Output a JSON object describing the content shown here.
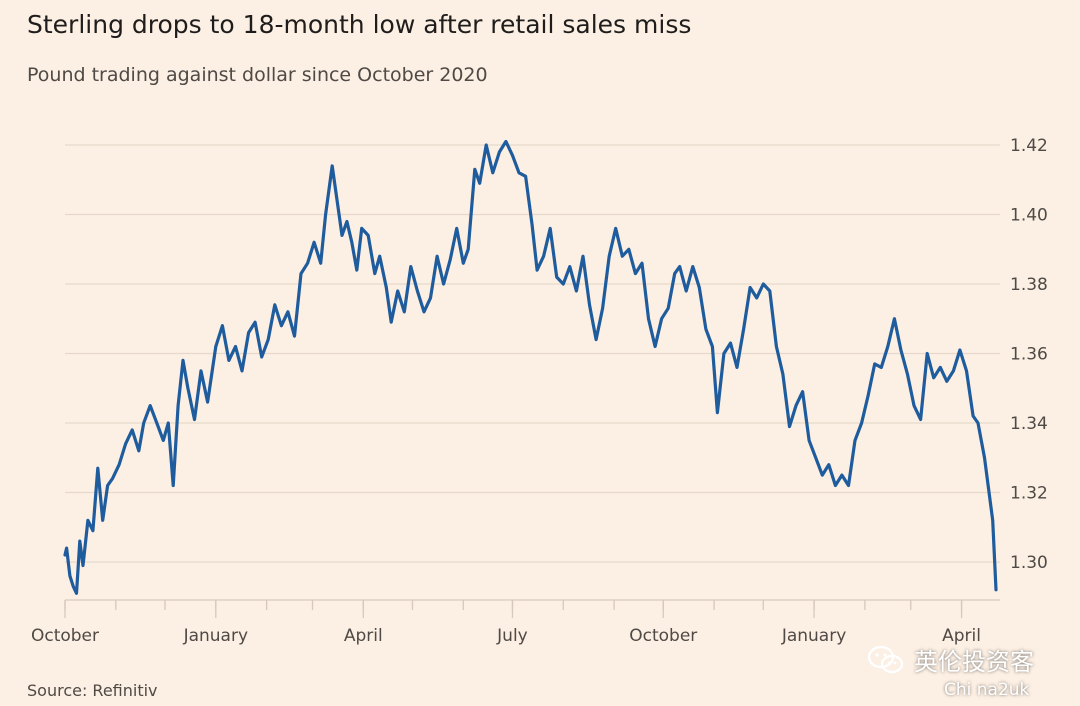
{
  "title": "Sterling drops to 18-month low after retail sales miss",
  "subtitle": "Pound trading against dollar since October 2020",
  "source": "Source: Refinitiv",
  "watermark": {
    "text": "英伦投资客",
    "sub": "Chi na2uk",
    "icon": "wechat-icon"
  },
  "colors": {
    "background": "#fcefe3",
    "line": "#1f5c9e",
    "grid": "#e6d9cc"
  },
  "chart_data": {
    "type": "line",
    "title": "Sterling drops to 18-month low after retail sales miss",
    "subtitle": "Pound trading against dollar since October 2020",
    "xlabel": "",
    "ylabel": "",
    "x_range": [
      "2020-10-01",
      "2022-04-22"
    ],
    "ylim": [
      1.29,
      1.422
    ],
    "y_ticks": [
      "1.30",
      "1.32",
      "1.34",
      "1.36",
      "1.38",
      "1.40",
      "1.42"
    ],
    "y_tick_values": [
      1.3,
      1.32,
      1.34,
      1.36,
      1.38,
      1.4,
      1.42
    ],
    "x_tick_labels": [
      "October",
      "January",
      "April",
      "July",
      "October",
      "January",
      "April"
    ],
    "x_tick_dates": [
      "2020-10-01",
      "2021-01-01",
      "2021-04-01",
      "2021-07-01",
      "2021-10-01",
      "2022-01-01",
      "2022-04-01"
    ],
    "grid": true,
    "series": [
      {
        "points": [
          [
            "2020-10-01",
            1.302
          ],
          [
            "2020-10-02",
            1.304
          ],
          [
            "2020-10-04",
            1.296
          ],
          [
            "2020-10-06",
            1.293
          ],
          [
            "2020-10-08",
            1.291
          ],
          [
            "2020-10-10",
            1.306
          ],
          [
            "2020-10-12",
            1.299
          ],
          [
            "2020-10-15",
            1.312
          ],
          [
            "2020-10-18",
            1.309
          ],
          [
            "2020-10-21",
            1.327
          ],
          [
            "2020-10-24",
            1.312
          ],
          [
            "2020-10-27",
            1.322
          ],
          [
            "2020-10-30",
            1.324
          ],
          [
            "2020-11-03",
            1.328
          ],
          [
            "2020-11-07",
            1.334
          ],
          [
            "2020-11-11",
            1.338
          ],
          [
            "2020-11-15",
            1.332
          ],
          [
            "2020-11-18",
            1.34
          ],
          [
            "2020-11-22",
            1.345
          ],
          [
            "2020-11-26",
            1.34
          ],
          [
            "2020-11-30",
            1.335
          ],
          [
            "2020-12-03",
            1.34
          ],
          [
            "2020-12-06",
            1.322
          ],
          [
            "2020-12-09",
            1.345
          ],
          [
            "2020-12-12",
            1.358
          ],
          [
            "2020-12-15",
            1.35
          ],
          [
            "2020-12-19",
            1.341
          ],
          [
            "2020-12-23",
            1.355
          ],
          [
            "2020-12-27",
            1.346
          ],
          [
            "2021-01-01",
            1.362
          ],
          [
            "2021-01-05",
            1.368
          ],
          [
            "2021-01-09",
            1.358
          ],
          [
            "2021-01-13",
            1.362
          ],
          [
            "2021-01-17",
            1.355
          ],
          [
            "2021-01-21",
            1.366
          ],
          [
            "2021-01-25",
            1.369
          ],
          [
            "2021-01-29",
            1.359
          ],
          [
            "2021-02-02",
            1.364
          ],
          [
            "2021-02-06",
            1.374
          ],
          [
            "2021-02-10",
            1.368
          ],
          [
            "2021-02-14",
            1.372
          ],
          [
            "2021-02-18",
            1.365
          ],
          [
            "2021-02-22",
            1.383
          ],
          [
            "2021-02-26",
            1.386
          ],
          [
            "2021-03-02",
            1.392
          ],
          [
            "2021-03-06",
            1.386
          ],
          [
            "2021-03-09",
            1.4
          ],
          [
            "2021-03-13",
            1.414
          ],
          [
            "2021-03-16",
            1.404
          ],
          [
            "2021-03-19",
            1.394
          ],
          [
            "2021-03-22",
            1.398
          ],
          [
            "2021-03-25",
            1.392
          ],
          [
            "2021-03-28",
            1.384
          ],
          [
            "2021-03-31",
            1.396
          ],
          [
            "2021-04-04",
            1.394
          ],
          [
            "2021-04-08",
            1.383
          ],
          [
            "2021-04-11",
            1.388
          ],
          [
            "2021-04-15",
            1.379
          ],
          [
            "2021-04-18",
            1.369
          ],
          [
            "2021-04-22",
            1.378
          ],
          [
            "2021-04-26",
            1.372
          ],
          [
            "2021-04-30",
            1.385
          ],
          [
            "2021-05-04",
            1.378
          ],
          [
            "2021-05-08",
            1.372
          ],
          [
            "2021-05-12",
            1.376
          ],
          [
            "2021-05-16",
            1.388
          ],
          [
            "2021-05-20",
            1.38
          ],
          [
            "2021-05-24",
            1.387
          ],
          [
            "2021-05-28",
            1.396
          ],
          [
            "2021-06-01",
            1.386
          ],
          [
            "2021-06-04",
            1.39
          ],
          [
            "2021-06-08",
            1.413
          ],
          [
            "2021-06-11",
            1.409
          ],
          [
            "2021-06-15",
            1.42
          ],
          [
            "2021-06-19",
            1.412
          ],
          [
            "2021-06-23",
            1.418
          ],
          [
            "2021-06-27",
            1.421
          ],
          [
            "2021-07-01",
            1.417
          ],
          [
            "2021-07-05",
            1.412
          ],
          [
            "2021-07-09",
            1.411
          ],
          [
            "2021-07-13",
            1.397
          ],
          [
            "2021-07-16",
            1.384
          ],
          [
            "2021-07-20",
            1.388
          ],
          [
            "2021-07-24",
            1.396
          ],
          [
            "2021-07-28",
            1.382
          ],
          [
            "2021-08-01",
            1.38
          ],
          [
            "2021-08-05",
            1.385
          ],
          [
            "2021-08-09",
            1.378
          ],
          [
            "2021-08-13",
            1.388
          ],
          [
            "2021-08-17",
            1.374
          ],
          [
            "2021-08-21",
            1.364
          ],
          [
            "2021-08-25",
            1.373
          ],
          [
            "2021-08-29",
            1.388
          ],
          [
            "2021-09-02",
            1.396
          ],
          [
            "2021-09-06",
            1.388
          ],
          [
            "2021-09-10",
            1.39
          ],
          [
            "2021-09-14",
            1.383
          ],
          [
            "2021-09-18",
            1.386
          ],
          [
            "2021-09-22",
            1.37
          ],
          [
            "2021-09-26",
            1.362
          ],
          [
            "2021-09-30",
            1.37
          ],
          [
            "2021-10-04",
            1.373
          ],
          [
            "2021-10-08",
            1.383
          ],
          [
            "2021-10-11",
            1.385
          ],
          [
            "2021-10-15",
            1.378
          ],
          [
            "2021-10-19",
            1.385
          ],
          [
            "2021-10-23",
            1.379
          ],
          [
            "2021-10-27",
            1.367
          ],
          [
            "2021-10-31",
            1.362
          ],
          [
            "2021-11-03",
            1.343
          ],
          [
            "2021-11-07",
            1.36
          ],
          [
            "2021-11-11",
            1.363
          ],
          [
            "2021-11-15",
            1.356
          ],
          [
            "2021-11-19",
            1.367
          ],
          [
            "2021-11-23",
            1.379
          ],
          [
            "2021-11-27",
            1.376
          ],
          [
            "2021-12-01",
            1.38
          ],
          [
            "2021-12-05",
            1.378
          ],
          [
            "2021-12-09",
            1.362
          ],
          [
            "2021-12-13",
            1.354
          ],
          [
            "2021-12-17",
            1.339
          ],
          [
            "2021-12-21",
            1.345
          ],
          [
            "2021-12-25",
            1.349
          ],
          [
            "2021-12-29",
            1.335
          ],
          [
            "2022-01-02",
            1.33
          ],
          [
            "2022-01-06",
            1.325
          ],
          [
            "2022-01-10",
            1.328
          ],
          [
            "2022-01-14",
            1.322
          ],
          [
            "2022-01-18",
            1.325
          ],
          [
            "2022-01-22",
            1.322
          ],
          [
            "2022-01-26",
            1.335
          ],
          [
            "2022-01-30",
            1.34
          ],
          [
            "2022-02-03",
            1.348
          ],
          [
            "2022-02-07",
            1.357
          ],
          [
            "2022-02-11",
            1.356
          ],
          [
            "2022-02-15",
            1.362
          ],
          [
            "2022-02-19",
            1.37
          ],
          [
            "2022-02-23",
            1.361
          ],
          [
            "2022-02-27",
            1.354
          ],
          [
            "2022-03-03",
            1.345
          ],
          [
            "2022-03-07",
            1.341
          ],
          [
            "2022-03-11",
            1.36
          ],
          [
            "2022-03-15",
            1.353
          ],
          [
            "2022-03-19",
            1.356
          ],
          [
            "2022-03-23",
            1.352
          ],
          [
            "2022-03-27",
            1.355
          ],
          [
            "2022-03-31",
            1.361
          ],
          [
            "2022-04-04",
            1.355
          ],
          [
            "2022-04-08",
            1.342
          ],
          [
            "2022-04-11",
            1.34
          ],
          [
            "2022-04-15",
            1.33
          ],
          [
            "2022-04-20",
            1.312
          ],
          [
            "2022-04-22",
            1.292
          ]
        ]
      }
    ]
  }
}
